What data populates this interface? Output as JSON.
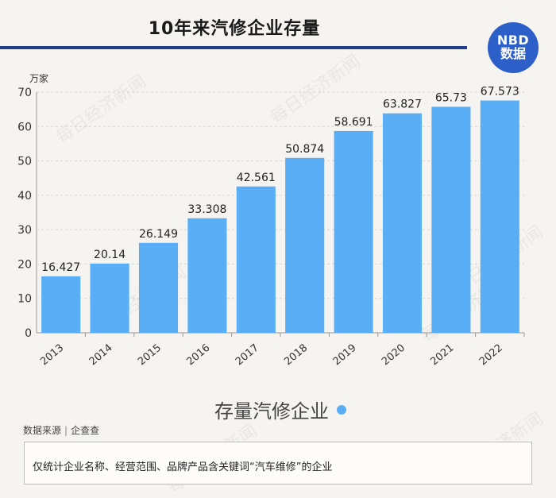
{
  "header": {
    "title": "10年来汽修企业存量",
    "logo_line1": "NBD",
    "logo_line2": "数据"
  },
  "watermark_text": "每日经济新闻",
  "chart_data": {
    "type": "bar",
    "unit_label": "万家",
    "categories": [
      "2013",
      "2014",
      "2015",
      "2016",
      "2017",
      "2018",
      "2019",
      "2020",
      "2021",
      "2022"
    ],
    "values": [
      16.427,
      20.14,
      26.149,
      33.308,
      42.561,
      50.874,
      58.691,
      63.827,
      65.73,
      67.573
    ],
    "value_labels": [
      "16.427",
      "20.14",
      "26.149",
      "33.308",
      "42.561",
      "50.874",
      "58.691",
      "63.827",
      "65.73",
      "67.573"
    ],
    "yticks": [
      0,
      10,
      20,
      30,
      40,
      50,
      60,
      70
    ],
    "ylim": [
      0,
      70
    ],
    "grid": true,
    "bar_color": "#5aaef5",
    "series_name": "存量汽修企业"
  },
  "legend": {
    "label": "存量汽修企业",
    "color": "#5aaef5"
  },
  "footer": {
    "source_label": "数据来源",
    "source_value": "企查查",
    "note": "仅统计企业名称、经营范围、品牌产品含关键词“汽车维修”的企业"
  }
}
